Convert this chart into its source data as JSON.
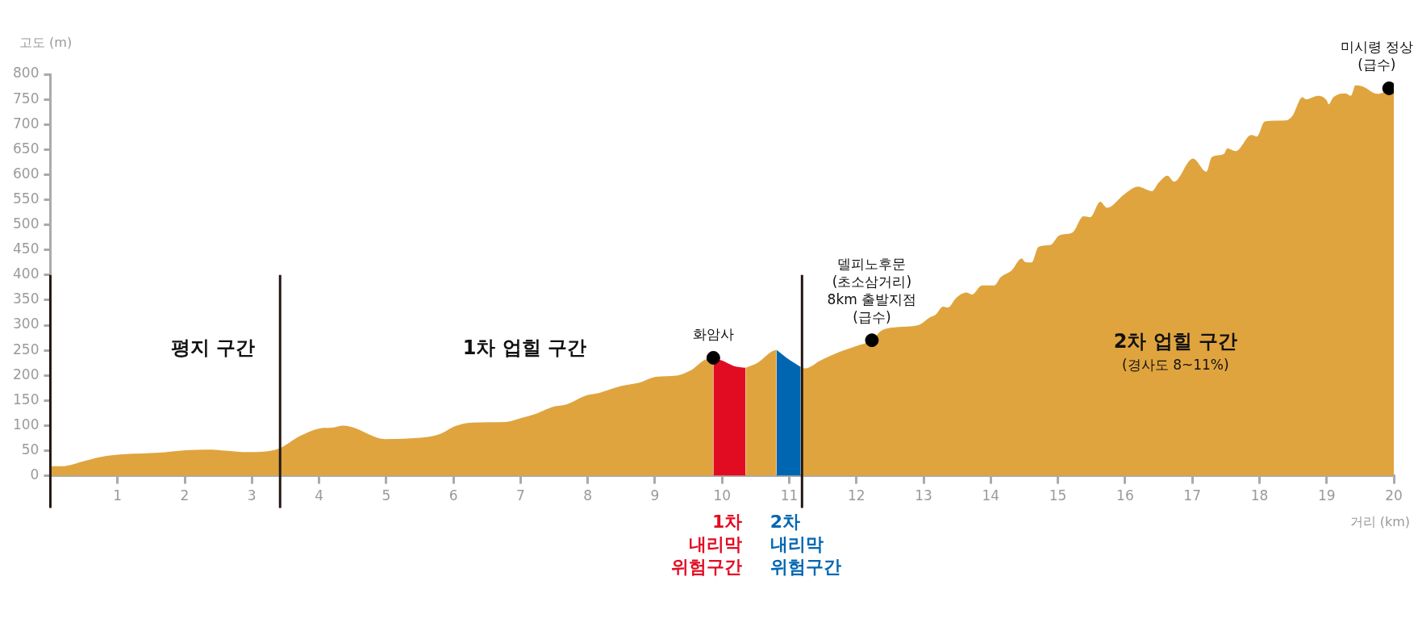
{
  "chart_data": {
    "type": "area",
    "xlabel": "거리 (km)",
    "ylabel": "고도 (m)",
    "xlim": [
      0,
      20
    ],
    "xticks": [
      1,
      2,
      3,
      4,
      5,
      6,
      7,
      8,
      9,
      10,
      11,
      12,
      13,
      14,
      15,
      16,
      17,
      18,
      19,
      20
    ],
    "ylim": [
      0,
      800
    ],
    "yticks": [
      0,
      50,
      100,
      150,
      200,
      250,
      300,
      350,
      400,
      450,
      500,
      550,
      600,
      650,
      700,
      750,
      800
    ],
    "series": [
      {
        "color": "#e0a43e",
        "x": [
          0,
          0.17,
          0.52,
          0.77,
          1.12,
          1.61,
          2.01,
          2.41,
          2.6,
          2.95,
          3.4,
          3.7,
          4.04,
          4.19,
          4.37,
          4.49,
          4.99,
          5.33,
          5.78,
          6.03,
          6.27,
          6.78,
          7.01,
          7.24,
          7.47,
          7.7,
          7.98,
          8.17,
          8.5,
          8.78,
          9.01,
          9.34,
          9.52,
          9.8,
          9.87,
          9.99,
          10.17,
          10.35,
          10.54,
          10.73,
          10.81,
          10.96,
          11.17,
          11.24,
          11.47,
          11.75,
          12.03,
          12.23,
          12.36,
          12.59,
          12.92,
          13.1,
          13.18,
          13.29,
          13.36,
          13.49,
          13.64,
          13.72,
          13.87,
          14.05,
          14.15,
          14.31,
          14.46,
          14.51,
          14.61,
          14.71,
          14.89,
          15.02,
          15.22,
          15.38,
          15.48,
          15.63,
          15.73,
          15.99,
          16.19,
          16.4,
          16.5,
          16.63,
          16.73,
          16.96,
          17.01,
          17.21,
          17.29,
          17.47,
          17.52,
          17.65,
          17.88,
          17.96,
          18.08,
          18.39,
          18.49,
          18.64,
          18.69,
          18.87,
          19.0,
          19.03,
          19.1,
          19.28,
          19.36,
          19.43,
          19.53,
          19.76,
          19.93,
          20
        ],
        "values": [
          19,
          19,
          30,
          38,
          43,
          46,
          51,
          52,
          50,
          47,
          54,
          78,
          95,
          96,
          100,
          97,
          73,
          74,
          82,
          99,
          106,
          107,
          115,
          124,
          137,
          143,
          160,
          165,
          179,
          186,
          197,
          200,
          209,
          233,
          233,
          null,
          null,
          215,
          226,
          247,
          251,
          null,
          217,
          214,
          230,
          247,
          260,
          270,
          288,
          296,
          300,
          316,
          321,
          337,
          335,
          355,
          365,
          361,
          379,
          379,
          396,
          409,
          433,
          426,
          425,
          456,
          460,
          479,
          485,
          517,
          515,
          546,
          534,
          561,
          576,
          567,
          584,
          598,
          586,
          628,
          632,
          606,
          635,
          641,
          652,
          647,
          679,
          676,
          706,
          708,
          717,
          754,
          750,
          757,
          748,
          740,
          754,
          762,
          757,
          778,
          776,
          761,
          770,
          775
        ]
      },
      {
        "type": "area",
        "name": "1차 내리막 위험구간",
        "color": "#e20c22",
        "x": [
          9.87,
          9.99,
          10.17,
          10.35
        ],
        "values": [
          233,
          230,
          219,
          215
        ]
      },
      {
        "type": "area",
        "name": "2차 내리막 위험구간",
        "color": "#0066b1",
        "x": [
          10.81,
          10.96,
          11.17
        ],
        "values": [
          251,
          235,
          217
        ]
      },
      {
        "type": "scatter",
        "color": "#000000",
        "marker": "circle",
        "x": [
          9.87,
          12.23,
          19.93
        ],
        "values": [
          235,
          270,
          772
        ]
      }
    ],
    "ref_lines": [
      {
        "axis": "x",
        "value": 0,
        "color": "#231815"
      },
      {
        "axis": "x",
        "value": 3.42,
        "color": "#231815"
      },
      {
        "axis": "x",
        "value": 11.19,
        "color": "#231815"
      }
    ],
    "annotations": [
      "평지 구간",
      "1차 업힐 구간",
      "2차 업힐 구간\n(경사도 8~11%)",
      {
        "text": "화암사",
        "x": 9.87,
        "y": 235
      },
      {
        "text": "델피노후문\n(초소삼거리)\n8km 출발지점\n(급수)",
        "x": 12.23,
        "y": 270
      },
      {
        "text": "미시령 정상\n(급수)",
        "x": 19.93,
        "y": 772
      }
    ]
  }
}
